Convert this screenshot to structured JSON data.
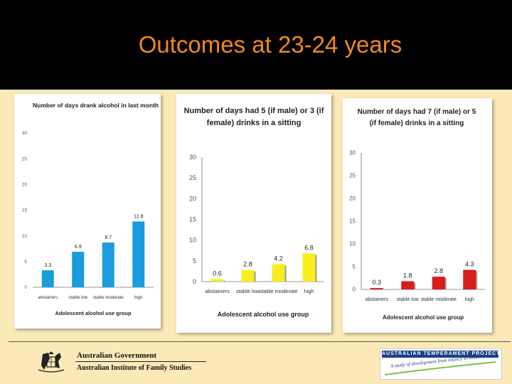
{
  "slide": {
    "title": "Outcomes at 23-24 years",
    "footer": {
      "gov_name": "Australian Government",
      "gov_dept": "Australian Institute of Family Studies",
      "atp_name": "AUSTRALIAN TEMPERAMENT PROJECT",
      "atp_tagline": "A study of development from infancy to adulthood"
    }
  },
  "chart_data": [
    {
      "type": "bar",
      "title": "Number of days drank alcohol in last month",
      "xlabel": "Adolescent alcohol use group",
      "ylabel": "",
      "ylim": [
        0,
        30
      ],
      "yticks": [
        0,
        5,
        10,
        15,
        20,
        25,
        30
      ],
      "categories": [
        "abstainers",
        "stable low",
        "stable moderate",
        "high"
      ],
      "values": [
        3.3,
        6.9,
        8.7,
        12.8
      ],
      "labels": [
        "3.3",
        "6.9",
        "8.7",
        "12.8"
      ],
      "color": "#1a9cde"
    },
    {
      "type": "bar",
      "title": "Number of days had 5 (if male) or 3 (if female) drinks in  a sitting",
      "title_lines": [
        "Number of days had 5 (if male) or 3 (if",
        "female) drinks in  a sitting"
      ],
      "xlabel": "Adolescent alcohol use group",
      "ylabel": "",
      "ylim": [
        0,
        30
      ],
      "yticks": [
        0,
        5,
        10,
        15,
        20,
        25,
        30
      ],
      "categories": [
        "abstainers",
        "stable low",
        "stable moderate",
        "high"
      ],
      "values": [
        0.6,
        2.8,
        4.2,
        6.8
      ],
      "labels": [
        "0.6",
        "2.8",
        "4.2",
        "6.8"
      ],
      "color": "#f7ee1e"
    },
    {
      "type": "bar",
      "title": "Number of days had 7 (if male) or 5 (if female) drinks in a sitting",
      "title_lines": [
        "Number of days had 7 (if male) or 5",
        "(if female) drinks in a sitting"
      ],
      "xlabel": "Adolescent alcohol use group",
      "ylabel": "",
      "ylim": [
        0,
        30
      ],
      "yticks": [
        0,
        5,
        10,
        15,
        20,
        25,
        30
      ],
      "categories": [
        "abstainers",
        "stable low",
        "stable moderate",
        "high"
      ],
      "values": [
        0.3,
        1.8,
        2.8,
        4.3
      ],
      "labels": [
        "0.3",
        "1.8",
        "2.8",
        "4.3"
      ],
      "color": "#d91c1c"
    }
  ]
}
